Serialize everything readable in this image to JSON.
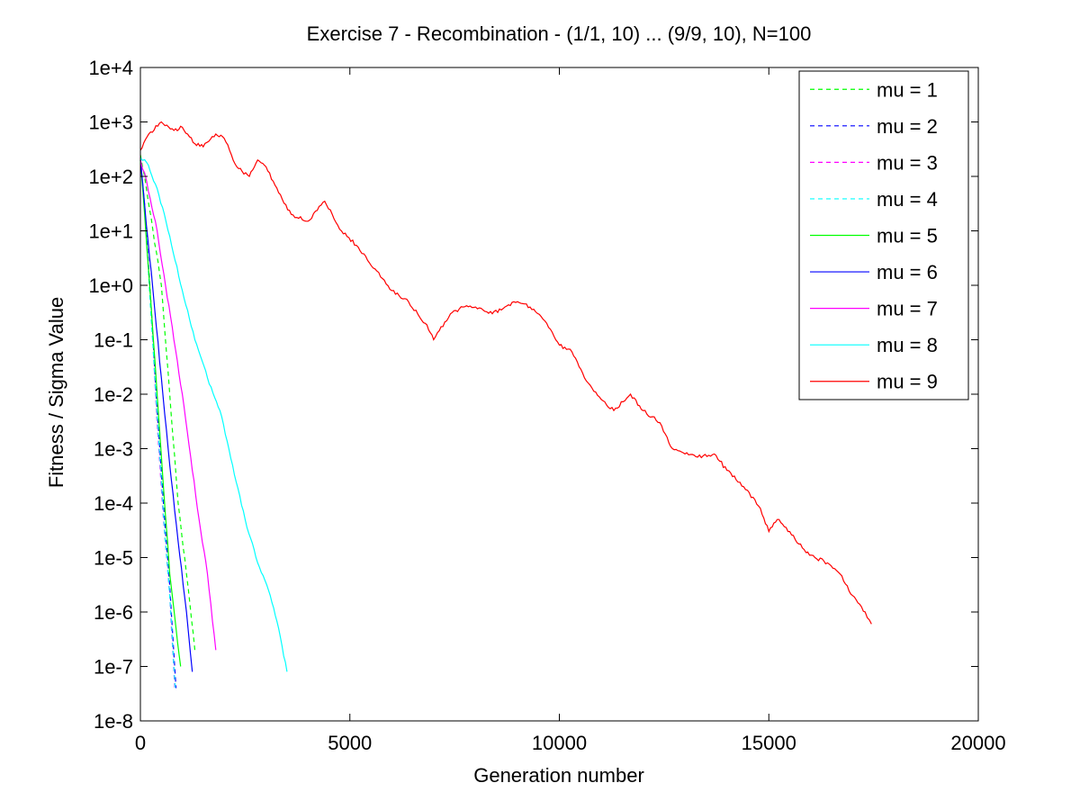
{
  "chart_data": {
    "type": "line",
    "title": "Exercise 7 - Recombination - (1/1, 10) ... (9/9, 10), N=100",
    "xlabel": "Generation number",
    "ylabel": "Fitness / Sigma Value",
    "xlim": [
      0,
      20000
    ],
    "ylim": [
      1e-08,
      10000
    ],
    "yscale": "log",
    "xticks": [
      "0",
      "5000",
      "10000",
      "15000",
      "20000"
    ],
    "yticks": [
      "1e-8",
      "1e-7",
      "1e-6",
      "1e-5",
      "1e-4",
      "1e-3",
      "1e-2",
      "1e-1",
      "1e+0",
      "1e+1",
      "1e+2",
      "1e+3",
      "1e+4"
    ],
    "grid": false,
    "legend_position": "top-right",
    "series": [
      {
        "name": "mu = 1",
        "color": "#00ff00",
        "style": "dashed",
        "x": [
          0,
          100,
          300,
          500,
          700,
          900,
          1100,
          1300
        ],
        "y": [
          250,
          100,
          10,
          1,
          0.01,
          0.0001,
          5e-06,
          2e-07
        ]
      },
      {
        "name": "mu = 2",
        "color": "#0000ff",
        "style": "dashed",
        "x": [
          0,
          100,
          250,
          400,
          550,
          700,
          850
        ],
        "y": [
          200,
          30,
          0.5,
          0.005,
          0.0001,
          3e-06,
          4e-08
        ]
      },
      {
        "name": "mu = 3",
        "color": "#ff00ff",
        "style": "dashed",
        "x": [
          0,
          100,
          250,
          400,
          550,
          700,
          820
        ],
        "y": [
          220,
          25,
          0.4,
          0.003,
          5e-05,
          2e-06,
          4e-08
        ]
      },
      {
        "name": "mu = 4",
        "color": "#00ffff",
        "style": "dashed",
        "x": [
          0,
          100,
          250,
          400,
          550,
          700,
          830
        ],
        "y": [
          220,
          30,
          0.3,
          0.004,
          6e-05,
          2e-06,
          4e-08
        ]
      },
      {
        "name": "mu = 5",
        "color": "#00ff00",
        "style": "solid",
        "x": [
          0,
          100,
          250,
          400,
          550,
          700,
          850,
          960
        ],
        "y": [
          200,
          20,
          0.5,
          0.01,
          0.0002,
          5e-06,
          5e-07,
          1e-07
        ]
      },
      {
        "name": "mu = 6",
        "color": "#0000ff",
        "style": "solid",
        "x": [
          0,
          100,
          300,
          500,
          700,
          900,
          1100,
          1240
        ],
        "y": [
          200,
          30,
          0.8,
          0.02,
          0.0005,
          2e-05,
          1e-06,
          8e-08
        ]
      },
      {
        "name": "mu = 7",
        "color": "#ff00ff",
        "style": "solid",
        "x": [
          0,
          150,
          400,
          600,
          800,
          1000,
          1200,
          1400,
          1600,
          1800
        ],
        "y": [
          200,
          80,
          10,
          1,
          0.1,
          0.01,
          0.0007,
          5e-05,
          5e-06,
          2e-07
        ]
      },
      {
        "name": "mu = 8",
        "color": "#00ffff",
        "style": "solid",
        "x": [
          0,
          150,
          400,
          700,
          1000,
          1300,
          1600,
          1900,
          2200,
          2500,
          2800,
          3100,
          3300,
          3500
        ],
        "y": [
          220,
          180,
          60,
          8,
          0.8,
          0.1,
          0.02,
          0.005,
          0.0005,
          5e-05,
          8e-06,
          2e-06,
          5e-07,
          8e-08
        ]
      },
      {
        "name": "mu = 9",
        "color": "#ff0000",
        "style": "solid",
        "x": [
          0,
          200,
          500,
          800,
          1000,
          1300,
          1500,
          1800,
          2000,
          2300,
          2600,
          2800,
          3000,
          3300,
          3600,
          4000,
          4400,
          4800,
          5200,
          5600,
          6000,
          6400,
          6800,
          7000,
          7400,
          7700,
          8000,
          8400,
          8700,
          9000,
          9300,
          9700,
          10000,
          10300,
          10600,
          11000,
          11300,
          11700,
          12000,
          12400,
          12700,
          13000,
          13300,
          13700,
          14000,
          14400,
          14800,
          15000,
          15200,
          15500,
          15800,
          16100,
          16400,
          16700,
          17000,
          17300,
          17450
        ],
        "y": [
          300,
          600,
          1000,
          700,
          800,
          400,
          350,
          600,
          500,
          150,
          100,
          200,
          150,
          50,
          20,
          15,
          35,
          10,
          5,
          2,
          0.8,
          0.5,
          0.2,
          0.1,
          0.3,
          0.4,
          0.4,
          0.3,
          0.4,
          0.5,
          0.4,
          0.2,
          0.08,
          0.06,
          0.02,
          0.008,
          0.005,
          0.01,
          0.005,
          0.003,
          0.001,
          0.0008,
          0.0007,
          0.0008,
          0.0004,
          0.0002,
          8e-05,
          3e-05,
          5e-05,
          3e-05,
          1.5e-05,
          1e-05,
          8e-06,
          5e-06,
          2e-06,
          1e-06,
          6e-07
        ]
      }
    ]
  }
}
